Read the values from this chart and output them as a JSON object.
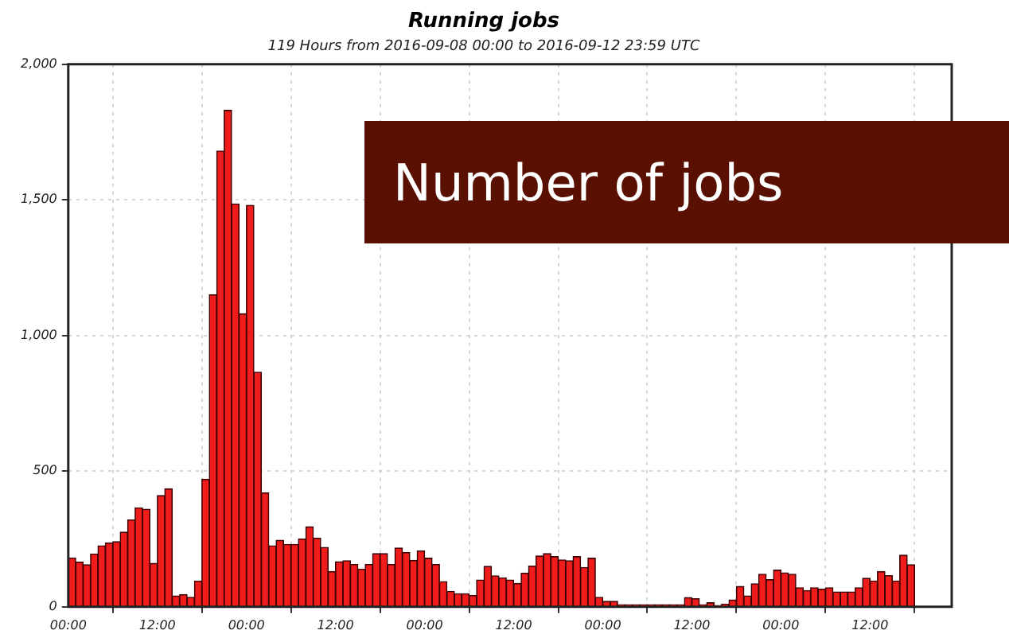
{
  "chart_data": {
    "type": "histogram",
    "title": "Running jobs",
    "subtitle": "119 Hours from 2016-09-08 00:00 to 2016-09-12 23:59 UTC",
    "bins": [
      "2016-09-08T00:00",
      "2016-09-08T01:00",
      "2016-09-08T02:00",
      "2016-09-08T03:00",
      "2016-09-08T04:00",
      "2016-09-08T05:00",
      "2016-09-08T06:00",
      "2016-09-08T07:00",
      "2016-09-08T08:00",
      "2016-09-08T09:00",
      "2016-09-08T10:00",
      "2016-09-08T11:00",
      "2016-09-08T12:00",
      "2016-09-08T13:00",
      "2016-09-08T14:00",
      "2016-09-08T15:00",
      "2016-09-08T16:00",
      "2016-09-08T17:00",
      "2016-09-08T18:00",
      "2016-09-08T19:00",
      "2016-09-08T20:00",
      "2016-09-08T21:00",
      "2016-09-08T22:00",
      "2016-09-08T23:00",
      "2016-09-09T00:00",
      "2016-09-09T01:00",
      "2016-09-09T02:00",
      "2016-09-09T03:00",
      "2016-09-09T04:00",
      "2016-09-09T05:00",
      "2016-09-09T06:00",
      "2016-09-09T07:00",
      "2016-09-09T08:00",
      "2016-09-09T09:00",
      "2016-09-09T10:00",
      "2016-09-09T11:00",
      "2016-09-09T12:00",
      "2016-09-09T13:00",
      "2016-09-09T14:00",
      "2016-09-09T15:00",
      "2016-09-09T16:00",
      "2016-09-09T17:00",
      "2016-09-09T18:00",
      "2016-09-09T19:00",
      "2016-09-09T20:00",
      "2016-09-09T21:00",
      "2016-09-09T22:00",
      "2016-09-09T23:00",
      "2016-09-10T00:00",
      "2016-09-10T01:00",
      "2016-09-10T02:00",
      "2016-09-10T03:00",
      "2016-09-10T04:00",
      "2016-09-10T05:00",
      "2016-09-10T06:00",
      "2016-09-10T07:00",
      "2016-09-10T08:00",
      "2016-09-10T09:00",
      "2016-09-10T10:00",
      "2016-09-10T11:00",
      "2016-09-10T12:00",
      "2016-09-10T13:00",
      "2016-09-10T14:00",
      "2016-09-10T15:00",
      "2016-09-10T16:00",
      "2016-09-10T17:00",
      "2016-09-10T18:00",
      "2016-09-10T19:00",
      "2016-09-10T20:00",
      "2016-09-10T21:00",
      "2016-09-10T22:00",
      "2016-09-10T23:00",
      "2016-09-11T00:00",
      "2016-09-11T01:00",
      "2016-09-11T02:00",
      "2016-09-11T03:00",
      "2016-09-11T04:00",
      "2016-09-11T05:00",
      "2016-09-11T06:00",
      "2016-09-11T07:00",
      "2016-09-11T08:00",
      "2016-09-11T09:00",
      "2016-09-11T10:00",
      "2016-09-11T11:00",
      "2016-09-11T12:00",
      "2016-09-11T13:00",
      "2016-09-11T14:00",
      "2016-09-11T15:00",
      "2016-09-11T16:00",
      "2016-09-11T17:00",
      "2016-09-11T18:00",
      "2016-09-11T19:00",
      "2016-09-11T20:00",
      "2016-09-11T21:00",
      "2016-09-11T22:00",
      "2016-09-11T23:00",
      "2016-09-12T00:00",
      "2016-09-12T01:00",
      "2016-09-12T02:00",
      "2016-09-12T03:00",
      "2016-09-12T04:00",
      "2016-09-12T05:00",
      "2016-09-12T06:00",
      "2016-09-12T07:00",
      "2016-09-12T08:00",
      "2016-09-12T09:00",
      "2016-09-12T10:00",
      "2016-09-12T11:00",
      "2016-09-12T12:00",
      "2016-09-12T13:00",
      "2016-09-12T14:00",
      "2016-09-12T15:00",
      "2016-09-12T16:00",
      "2016-09-12T17:00",
      "2016-09-12T18:00"
    ],
    "values": [
      180,
      165,
      155,
      195,
      225,
      235,
      240,
      275,
      320,
      365,
      360,
      160,
      410,
      435,
      40,
      45,
      35,
      95,
      470,
      1150,
      1680,
      1830,
      1485,
      1080,
      1480,
      865,
      420,
      225,
      245,
      230,
      230,
      250,
      295,
      253,
      219,
      130,
      166,
      170,
      156,
      139,
      156,
      196,
      196,
      156,
      217,
      200,
      171,
      206,
      179,
      156,
      93,
      57,
      48,
      48,
      42,
      99,
      149,
      114,
      107,
      99,
      86,
      124,
      150,
      187,
      196,
      185,
      173,
      170,
      185,
      145,
      179,
      35,
      20,
      20,
      8,
      8,
      8,
      8,
      8,
      8,
      8,
      8,
      8,
      34,
      30,
      8,
      15,
      5,
      10,
      25,
      75,
      40,
      85,
      120,
      100,
      135,
      125,
      120,
      70,
      60,
      70,
      65,
      70,
      55,
      55,
      55,
      70,
      105,
      95,
      130,
      115,
      95,
      190,
      155
    ],
    "color": "#f01c1c",
    "xlim": [
      "2016-09-08T00:00",
      "2016-09-12T23:00"
    ],
    "xticks": [
      {
        "value": "2016-09-08T00:00",
        "label": "00:00"
      },
      {
        "value": "2016-09-08T12:00",
        "label": "12:00"
      },
      {
        "value": "2016-09-09T00:00",
        "label": "00:00"
      },
      {
        "value": "2016-09-09T12:00",
        "label": "12:00"
      },
      {
        "value": "2016-09-10T00:00",
        "label": "00:00"
      },
      {
        "value": "2016-09-10T12:00",
        "label": "12:00"
      },
      {
        "value": "2016-09-11T00:00",
        "label": "00:00"
      },
      {
        "value": "2016-09-11T12:00",
        "label": "12:00"
      },
      {
        "value": "2016-09-12T00:00",
        "label": "00:00"
      },
      {
        "value": "2016-09-12T12:00",
        "label": "12:00"
      }
    ],
    "ylim": [
      0,
      2000
    ],
    "yticks": [
      0,
      500,
      {
        "value": 1000,
        "label": "1,000"
      },
      {
        "value": 1500,
        "label": "1,500"
      },
      {
        "value": 2000,
        "label": "2,000"
      }
    ],
    "grid": true,
    "legend": false,
    "annotations": [
      "Number of jobs"
    ]
  }
}
